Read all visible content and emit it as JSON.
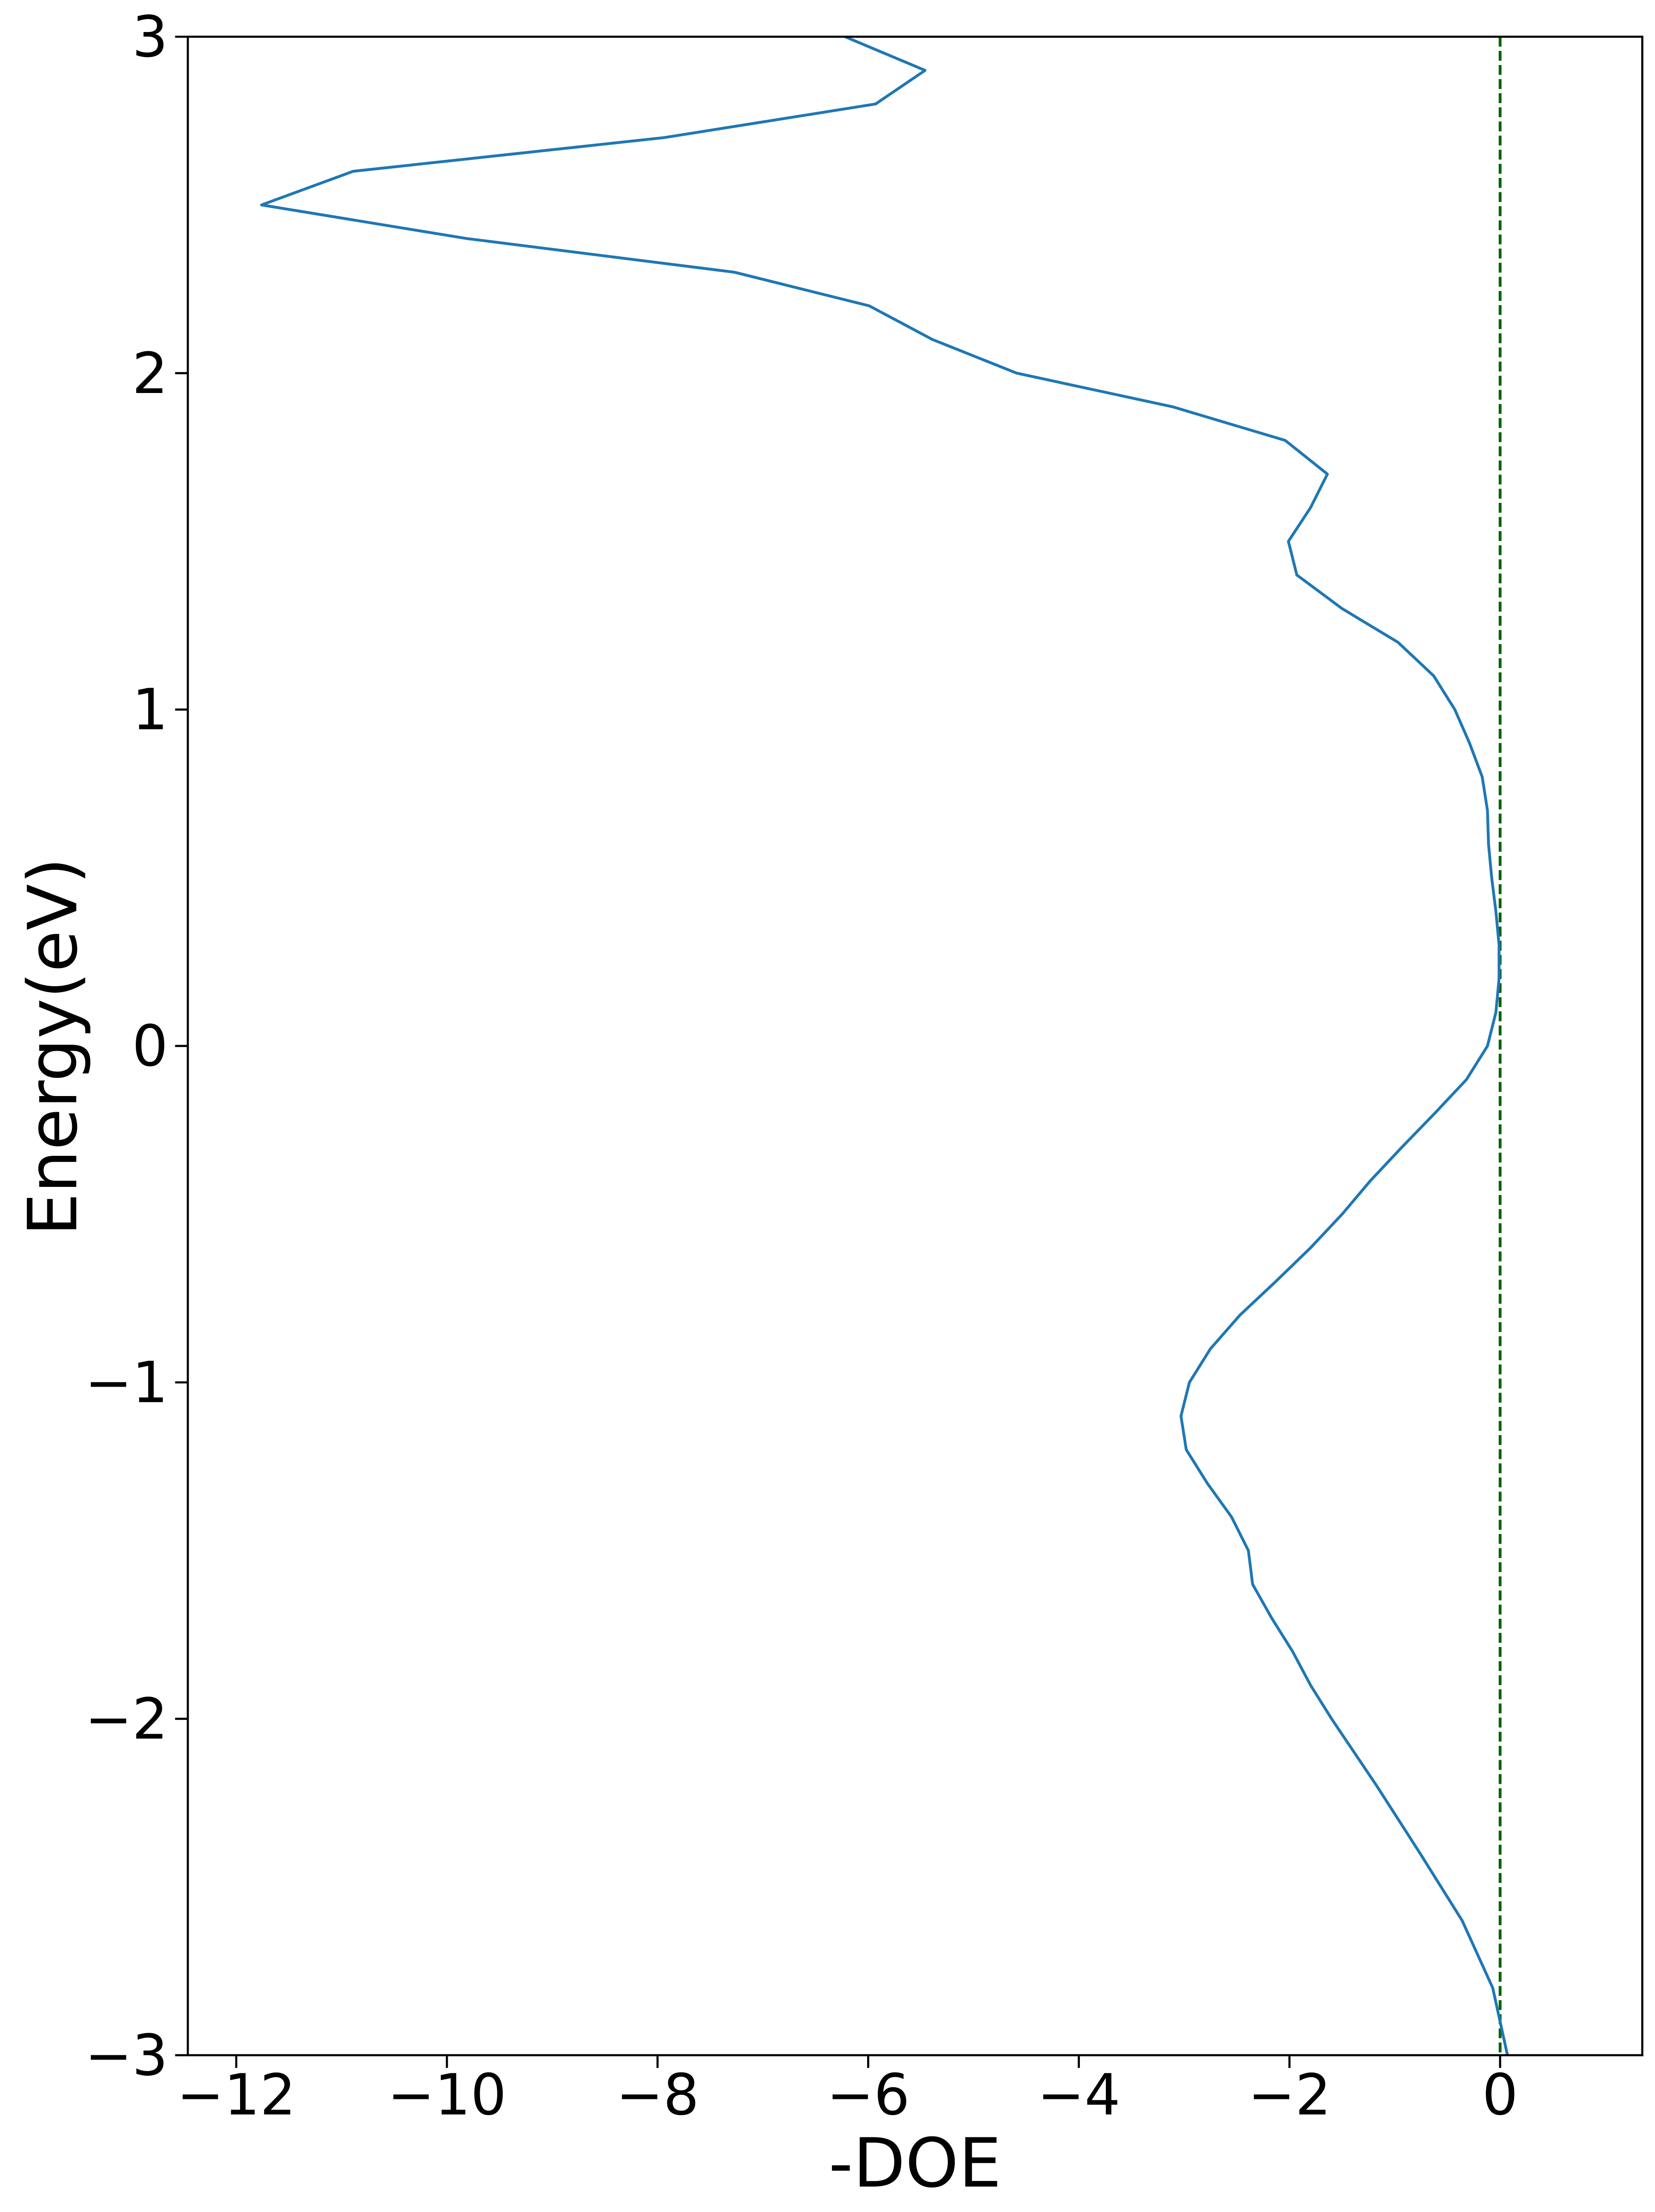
{
  "chart_data": {
    "type": "line",
    "x_label": "-DOE",
    "y_label": "Energy(eV)",
    "x": [
      0.07,
      -0.07,
      -0.36,
      -0.76,
      -1.17,
      -1.6,
      -1.8,
      -1.97,
      -2.17,
      -2.35,
      -2.39,
      -2.55,
      -2.78,
      -2.98,
      -3.03,
      -2.95,
      -2.75,
      -2.47,
      -2.13,
      -1.8,
      -1.5,
      -1.23,
      -0.93,
      -0.62,
      -0.32,
      -0.12,
      -0.04,
      -0.01,
      -0.01,
      -0.04,
      -0.08,
      -0.11,
      -0.12,
      -0.17,
      -0.29,
      -0.43,
      -0.63,
      -0.97,
      -1.5,
      -1.93,
      -2.01,
      -1.8,
      -1.64,
      -2.04,
      -3.11,
      -4.59,
      -5.39,
      -5.99,
      -7.27,
      -9.81,
      -11.76,
      -10.89,
      -7.94,
      -5.93,
      -5.46,
      -6.22
    ],
    "values": [
      -3.0,
      -2.8,
      -2.6,
      -2.4,
      -2.2,
      -2.0,
      -1.9,
      -1.8,
      -1.7,
      -1.6,
      -1.5,
      -1.4,
      -1.3,
      -1.2,
      -1.1,
      -1.0,
      -0.9,
      -0.8,
      -0.7,
      -0.6,
      -0.5,
      -0.4,
      -0.3,
      -0.2,
      -0.1,
      0.0,
      0.1,
      0.2,
      0.3,
      0.4,
      0.5,
      0.6,
      0.7,
      0.8,
      0.9,
      1.0,
      1.1,
      1.2,
      1.3,
      1.4,
      1.5,
      1.6,
      1.7,
      1.8,
      1.9,
      2.0,
      2.1,
      2.2,
      2.3,
      2.4,
      2.5,
      2.6,
      2.7,
      2.8,
      2.9,
      3.0
    ],
    "color": "#1f77b4",
    "vline": {
      "x": 0,
      "color": "#006400",
      "dashed": true
    },
    "xlim": [
      -12.46,
      1.35
    ],
    "ylim": [
      -3,
      3
    ],
    "xticks": [
      {
        "value": -12,
        "label": "−12"
      },
      {
        "value": -10,
        "label": "−10"
      },
      {
        "value": -8,
        "label": "−8"
      },
      {
        "value": -6,
        "label": "−6"
      },
      {
        "value": -4,
        "label": "−4"
      },
      {
        "value": -2,
        "label": "−2"
      },
      0
    ],
    "yticks": [
      {
        "value": -3,
        "label": "−3"
      },
      {
        "value": -2,
        "label": "−2"
      },
      {
        "value": -1,
        "label": "−1"
      },
      0,
      1,
      2,
      3
    ],
    "grid": false
  }
}
